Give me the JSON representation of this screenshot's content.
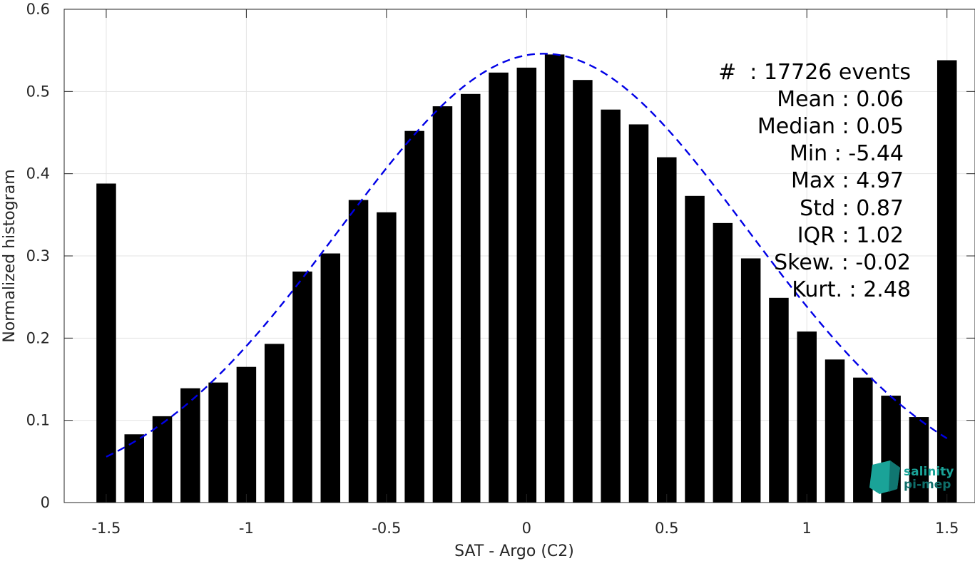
{
  "chart_data": {
    "type": "bar",
    "xlabel": "SAT - Argo (C2)",
    "ylabel": "Normalized histogram",
    "xlim": [
      -1.65,
      1.6
    ],
    "ylim": [
      0,
      0.6
    ],
    "xticks": [
      -1.5,
      -1,
      -0.5,
      0,
      0.5,
      1,
      1.5
    ],
    "xtick_labels": [
      "-1.5",
      "-1",
      "-0.5",
      "0",
      "0.5",
      "1",
      "1.5"
    ],
    "yticks": [
      0,
      0.1,
      0.2,
      0.3,
      0.4,
      0.5,
      0.6
    ],
    "ytick_labels": [
      "0",
      "0.1",
      "0.2",
      "0.3",
      "0.4",
      "0.5",
      "0.6"
    ],
    "grid": true,
    "bar_color": "#000000",
    "bar_width": 0.07,
    "bars": {
      "x": [
        -1.5,
        -1.4,
        -1.3,
        -1.2,
        -1.1,
        -1.0,
        -0.9,
        -0.8,
        -0.7,
        -0.6,
        -0.5,
        -0.4,
        -0.3,
        -0.2,
        -0.1,
        0.0,
        0.1,
        0.2,
        0.3,
        0.4,
        0.5,
        0.6,
        0.7,
        0.8,
        0.9,
        1.0,
        1.1,
        1.2,
        1.3,
        1.4,
        1.5
      ],
      "values": [
        0.388,
        0.083,
        0.105,
        0.139,
        0.146,
        0.165,
        0.193,
        0.281,
        0.303,
        0.368,
        0.353,
        0.452,
        0.482,
        0.497,
        0.523,
        0.529,
        0.545,
        0.514,
        0.478,
        0.46,
        0.42,
        0.373,
        0.34,
        0.297,
        0.249,
        0.208,
        0.174,
        0.152,
        0.13,
        0.104,
        0.538
      ]
    },
    "fit_curve": {
      "style": "dashed",
      "color": "#0000e6",
      "mean": 0.06,
      "std": 0.73,
      "peak": 0.546,
      "x_range": [
        -1.5,
        1.5
      ]
    },
    "annotations": [
      "#  : 17726 events",
      "Mean : 0.06",
      "Median : 0.05",
      "Min : -5.44",
      "Max : 4.97",
      "Std : 0.87",
      "IQR : 1.02",
      "Skew. : -0.02",
      "Kurt. : 2.48"
    ]
  },
  "logo": {
    "line1": "salinity",
    "line2": "pi-mep",
    "color_primary": "#1aa398",
    "color_dark": "#0f6e6a"
  }
}
